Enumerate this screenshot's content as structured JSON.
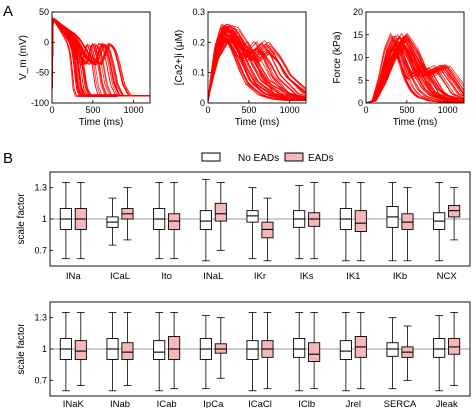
{
  "panel_labels": {
    "a": "A",
    "b": "B"
  },
  "colors": {
    "trace": "#ff0000",
    "noead_fill": "#ffffff",
    "ead_fill": "#f5b7b7",
    "box_stroke": "#000000",
    "refline": "#9a9a9a"
  },
  "chart_data": [
    {
      "id": "vm",
      "type": "line",
      "xlabel": "Time (ms)",
      "ylabel": "V_m (mV)",
      "xlim": [
        0,
        1200
      ],
      "ylim": [
        -100,
        50
      ],
      "xticks": [
        0,
        500,
        1000
      ],
      "yticks": [
        -100,
        -50,
        0,
        50
      ],
      "series": [
        {
          "role": "no-EAD trace",
          "x": [
            0,
            5,
            60,
            120,
            180,
            240,
            280,
            310,
            340,
            380,
            1200
          ],
          "y": [
            -88,
            40,
            32,
            22,
            12,
            0,
            -15,
            -40,
            -75,
            -88,
            -88
          ]
        },
        {
          "role": "EAD trace",
          "x": [
            0,
            5,
            80,
            160,
            230,
            280,
            320,
            360,
            420,
            480,
            530,
            560,
            590,
            620,
            660,
            700,
            760,
            1200
          ],
          "y": [
            -88,
            40,
            30,
            20,
            12,
            3,
            -8,
            -20,
            -30,
            -36,
            -15,
            -3,
            -6,
            -15,
            -40,
            -70,
            -88,
            -88
          ]
        }
      ]
    },
    {
      "id": "ca",
      "type": "line",
      "xlabel": "Time (ms)",
      "ylabel": "[Ca2+]i (μM)",
      "xlim": [
        0,
        1200
      ],
      "ylim": [
        0,
        0.3
      ],
      "xticks": [
        0,
        500,
        1000
      ],
      "yticks": [
        0,
        0.1,
        0.2,
        0.3
      ],
      "series": [
        {
          "role": "no-EAD trace",
          "x": [
            0,
            40,
            100,
            200,
            300,
            400,
            500,
            600,
            800,
            1000,
            1200
          ],
          "y": [
            0.005,
            0.08,
            0.17,
            0.24,
            0.23,
            0.18,
            0.12,
            0.07,
            0.03,
            0.015,
            0.01
          ]
        },
        {
          "role": "EAD trace",
          "x": [
            0,
            40,
            100,
            200,
            300,
            400,
            500,
            600,
            700,
            800,
            1000,
            1200
          ],
          "y": [
            0.005,
            0.08,
            0.17,
            0.24,
            0.22,
            0.17,
            0.16,
            0.19,
            0.15,
            0.09,
            0.03,
            0.015
          ]
        }
      ]
    },
    {
      "id": "force",
      "type": "line",
      "xlabel": "Time (ms)",
      "ylabel": "Force (kPa)",
      "xlim": [
        0,
        1200
      ],
      "ylim": [
        0,
        20
      ],
      "xticks": [
        0,
        500,
        1000
      ],
      "yticks": [
        0,
        5,
        10,
        15,
        20
      ],
      "series": [
        {
          "role": "no-EAD trace",
          "x": [
            0,
            100,
            200,
            300,
            400,
            500,
            600,
            700,
            800,
            1000,
            1200
          ],
          "y": [
            0,
            0.5,
            5,
            11,
            14,
            11,
            6,
            3,
            1.5,
            0.5,
            0.2
          ]
        },
        {
          "role": "EAD trace",
          "x": [
            0,
            100,
            200,
            300,
            400,
            500,
            600,
            700,
            800,
            900,
            1000,
            1200
          ],
          "y": [
            0,
            0.5,
            5,
            11,
            14,
            10,
            6,
            7,
            8,
            5,
            2,
            0.5
          ]
        }
      ]
    },
    {
      "id": "scale1",
      "type": "box",
      "ylabel": "scale factor",
      "ylim": [
        0.55,
        1.45
      ],
      "yticks": [
        0.7,
        1,
        1.3
      ],
      "reference_line": 1,
      "legend": [
        "No EADs",
        "EADs"
      ],
      "categories": [
        "INa",
        "ICaL",
        "Ito",
        "INaL",
        "IKr",
        "IKs",
        "IK1",
        "IKb",
        "NCX"
      ],
      "groups": [
        {
          "name": "No EADs",
          "stats": [
            [
              0.62,
              0.9,
              1.0,
              1.1,
              1.35
            ],
            [
              0.75,
              0.92,
              0.97,
              1.02,
              1.2
            ],
            [
              0.62,
              0.9,
              1.0,
              1.1,
              1.35
            ],
            [
              0.6,
              0.9,
              0.98,
              1.08,
              1.38
            ],
            [
              0.62,
              0.97,
              1.03,
              1.08,
              1.3
            ],
            [
              0.62,
              0.92,
              1.0,
              1.08,
              1.32
            ],
            [
              0.6,
              0.9,
              1.0,
              1.1,
              1.35
            ],
            [
              0.6,
              0.92,
              1.02,
              1.12,
              1.35
            ],
            [
              0.6,
              0.9,
              0.98,
              1.06,
              1.35
            ]
          ]
        },
        {
          "name": "EADs",
          "stats": [
            [
              0.62,
              0.9,
              1.0,
              1.1,
              1.35
            ],
            [
              0.8,
              1.0,
              1.05,
              1.1,
              1.3
            ],
            [
              0.62,
              0.9,
              0.98,
              1.05,
              1.35
            ],
            [
              0.7,
              0.98,
              1.05,
              1.15,
              1.35
            ],
            [
              0.6,
              0.82,
              0.9,
              0.97,
              1.2
            ],
            [
              0.62,
              0.93,
              1.0,
              1.06,
              1.35
            ],
            [
              0.6,
              0.88,
              0.96,
              1.08,
              1.35
            ],
            [
              0.6,
              0.9,
              0.97,
              1.05,
              1.3
            ],
            [
              0.8,
              1.02,
              1.08,
              1.13,
              1.3
            ]
          ]
        }
      ]
    },
    {
      "id": "scale2",
      "type": "box",
      "ylabel": "scale factor",
      "ylim": [
        0.55,
        1.45
      ],
      "yticks": [
        0.7,
        1,
        1.3
      ],
      "reference_line": 1,
      "categories": [
        "INaK",
        "INab",
        "ICab",
        "IpCa",
        "ICaCl",
        "IClb",
        "Jrel",
        "SERCA",
        "Jleak"
      ],
      "groups": [
        {
          "name": "No EADs",
          "stats": [
            [
              0.6,
              0.9,
              1.0,
              1.1,
              1.35
            ],
            [
              0.6,
              0.9,
              1.0,
              1.1,
              1.35
            ],
            [
              0.6,
              0.9,
              0.97,
              1.08,
              1.35
            ],
            [
              0.62,
              0.9,
              1.0,
              1.1,
              1.32
            ],
            [
              0.6,
              0.9,
              1.0,
              1.08,
              1.35
            ],
            [
              0.6,
              0.92,
              1.0,
              1.1,
              1.35
            ],
            [
              0.6,
              0.9,
              0.98,
              1.08,
              1.35
            ],
            [
              0.62,
              0.93,
              1.0,
              1.06,
              1.3
            ],
            [
              0.6,
              0.92,
              1.0,
              1.1,
              1.32
            ]
          ]
        },
        {
          "name": "EADs",
          "stats": [
            [
              0.65,
              0.9,
              0.98,
              1.08,
              1.35
            ],
            [
              0.65,
              0.9,
              0.97,
              1.06,
              1.35
            ],
            [
              0.62,
              0.9,
              1.0,
              1.12,
              1.35
            ],
            [
              0.72,
              0.96,
              1.0,
              1.05,
              1.3
            ],
            [
              0.62,
              0.92,
              1.0,
              1.08,
              1.35
            ],
            [
              0.62,
              0.88,
              0.95,
              1.06,
              1.35
            ],
            [
              0.62,
              0.92,
              1.02,
              1.12,
              1.35
            ],
            [
              0.7,
              0.92,
              0.97,
              1.02,
              1.22
            ],
            [
              0.65,
              0.95,
              1.02,
              1.1,
              1.35
            ]
          ]
        }
      ]
    }
  ]
}
